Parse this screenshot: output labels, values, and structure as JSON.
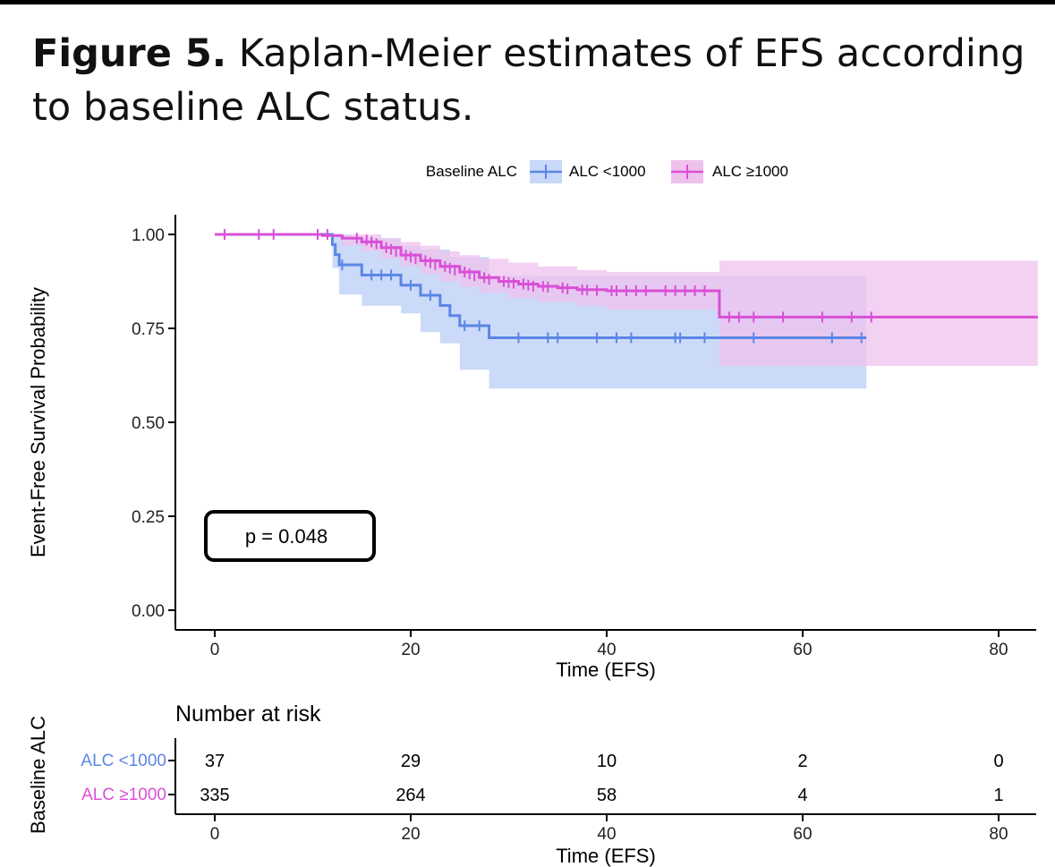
{
  "caption": {
    "label": "Figure 5.",
    "text": " Kaplan-Meier estimates of EFS according to baseline ALC status."
  },
  "colors": {
    "alc_low": "#5b86e5",
    "alc_low_band": "#c8d8f8",
    "alc_high": "#d94fd6",
    "alc_high_band": "#efc2ee",
    "axis": "#000000"
  },
  "chart_data": {
    "type": "line",
    "subtype": "kaplan-meier",
    "title": "",
    "xlabel": "Time (EFS)",
    "ylabel": "Event-Free Survival Probability",
    "xlim": [
      -5,
      84
    ],
    "ylim": [
      -0.02,
      1.05
    ],
    "xticks": [
      "0",
      "20",
      "40",
      "60",
      "80"
    ],
    "yticks": [
      "0.00",
      "0.25",
      "0.50",
      "0.75",
      "1.00"
    ],
    "legend": {
      "title": "Baseline ALC",
      "position": "top",
      "entries": [
        "ALC <1000",
        "ALC ≥1000"
      ]
    },
    "annotation": "p = 0.048",
    "series": [
      {
        "name": "ALC <1000",
        "color": "#5b86e5",
        "steps": [
          [
            0,
            1.0
          ],
          [
            12,
            0.973
          ],
          [
            12.3,
            0.946
          ],
          [
            12.7,
            0.919
          ],
          [
            15,
            0.892
          ],
          [
            19,
            0.865
          ],
          [
            21,
            0.838
          ],
          [
            23,
            0.811
          ],
          [
            24,
            0.784
          ],
          [
            25,
            0.757
          ],
          [
            28,
            0.725
          ],
          [
            66.5,
            0.725
          ]
        ],
        "ci_upper": [
          [
            0,
            1.0
          ],
          [
            12,
            1.0
          ],
          [
            14,
            0.99
          ],
          [
            19,
            0.97
          ],
          [
            21,
            0.96
          ],
          [
            24,
            0.94
          ],
          [
            28,
            0.89
          ],
          [
            66.5,
            0.89
          ]
        ],
        "ci_lower": [
          [
            0,
            1.0
          ],
          [
            12,
            0.91
          ],
          [
            12.7,
            0.84
          ],
          [
            15,
            0.81
          ],
          [
            19,
            0.79
          ],
          [
            21,
            0.74
          ],
          [
            23,
            0.71
          ],
          [
            25,
            0.64
          ],
          [
            28,
            0.59
          ],
          [
            66.5,
            0.59
          ]
        ],
        "censors": [
          [
            13,
            0.919
          ],
          [
            16,
            0.892
          ],
          [
            17,
            0.892
          ],
          [
            18,
            0.892
          ],
          [
            20,
            0.865
          ],
          [
            22,
            0.838
          ],
          [
            25.5,
            0.757
          ],
          [
            27,
            0.757
          ],
          [
            31,
            0.725
          ],
          [
            34,
            0.725
          ],
          [
            35,
            0.725
          ],
          [
            39,
            0.725
          ],
          [
            41,
            0.725
          ],
          [
            42.5,
            0.725
          ],
          [
            47,
            0.725
          ],
          [
            47.5,
            0.725
          ],
          [
            50,
            0.725
          ],
          [
            55,
            0.725
          ],
          [
            63,
            0.725
          ],
          [
            66,
            0.725
          ]
        ]
      },
      {
        "name": "ALC ≥1000",
        "color": "#d94fd6",
        "steps": [
          [
            0,
            1.0
          ],
          [
            11,
            0.997
          ],
          [
            13,
            0.99
          ],
          [
            15,
            0.98
          ],
          [
            17,
            0.965
          ],
          [
            19,
            0.945
          ],
          [
            21,
            0.93
          ],
          [
            23,
            0.915
          ],
          [
            25,
            0.9
          ],
          [
            27,
            0.885
          ],
          [
            29,
            0.875
          ],
          [
            31,
            0.868
          ],
          [
            33,
            0.862
          ],
          [
            35,
            0.858
          ],
          [
            37,
            0.853
          ],
          [
            40,
            0.85
          ],
          [
            51.5,
            0.85
          ],
          [
            51.5,
            0.78
          ],
          [
            84,
            0.78
          ]
        ],
        "ci_upper": [
          [
            0,
            1.0
          ],
          [
            15,
            1.0
          ],
          [
            17,
            0.99
          ],
          [
            19,
            0.98
          ],
          [
            21,
            0.97
          ],
          [
            23,
            0.955
          ],
          [
            25,
            0.945
          ],
          [
            27,
            0.935
          ],
          [
            30,
            0.925
          ],
          [
            33,
            0.915
          ],
          [
            37,
            0.905
          ],
          [
            40,
            0.9
          ],
          [
            51.5,
            0.9
          ],
          [
            51.5,
            0.93
          ],
          [
            84,
            0.93
          ]
        ],
        "ci_lower": [
          [
            0,
            1.0
          ],
          [
            13,
            0.97
          ],
          [
            15,
            0.955
          ],
          [
            17,
            0.935
          ],
          [
            19,
            0.915
          ],
          [
            21,
            0.895
          ],
          [
            23,
            0.875
          ],
          [
            25,
            0.86
          ],
          [
            27,
            0.845
          ],
          [
            30,
            0.83
          ],
          [
            33,
            0.82
          ],
          [
            37,
            0.81
          ],
          [
            40,
            0.8
          ],
          [
            51.5,
            0.8
          ],
          [
            51.5,
            0.65
          ],
          [
            84,
            0.65
          ]
        ],
        "censors": [
          [
            1,
            1.0
          ],
          [
            4.5,
            1.0
          ],
          [
            6,
            1.0
          ],
          [
            10.5,
            1.0
          ],
          [
            11.5,
            1.0
          ],
          [
            14.5,
            0.99
          ],
          [
            15.5,
            0.985
          ],
          [
            16,
            0.98
          ],
          [
            16.5,
            0.975
          ],
          [
            17.5,
            0.965
          ],
          [
            18,
            0.96
          ],
          [
            18.5,
            0.955
          ],
          [
            19.5,
            0.945
          ],
          [
            20,
            0.94
          ],
          [
            20.5,
            0.935
          ],
          [
            21.5,
            0.93
          ],
          [
            22,
            0.925
          ],
          [
            22.5,
            0.92
          ],
          [
            23.5,
            0.915
          ],
          [
            24,
            0.91
          ],
          [
            24.5,
            0.905
          ],
          [
            25.5,
            0.9
          ],
          [
            26,
            0.895
          ],
          [
            26.5,
            0.89
          ],
          [
            27.5,
            0.885
          ],
          [
            28,
            0.88
          ],
          [
            29.5,
            0.875
          ],
          [
            30,
            0.872
          ],
          [
            30.5,
            0.87
          ],
          [
            31.5,
            0.868
          ],
          [
            32,
            0.865
          ],
          [
            32.5,
            0.862
          ],
          [
            33.5,
            0.862
          ],
          [
            34,
            0.86
          ],
          [
            35.5,
            0.858
          ],
          [
            36,
            0.855
          ],
          [
            37.5,
            0.853
          ],
          [
            38,
            0.852
          ],
          [
            39,
            0.851
          ],
          [
            40.5,
            0.85
          ],
          [
            41,
            0.85
          ],
          [
            42,
            0.85
          ],
          [
            43,
            0.85
          ],
          [
            44,
            0.85
          ],
          [
            46,
            0.85
          ],
          [
            47,
            0.85
          ],
          [
            48,
            0.85
          ],
          [
            49,
            0.85
          ],
          [
            50,
            0.85
          ],
          [
            52.5,
            0.78
          ],
          [
            53.5,
            0.78
          ],
          [
            55,
            0.78
          ],
          [
            58,
            0.78
          ],
          [
            62,
            0.78
          ],
          [
            65,
            0.78
          ],
          [
            67,
            0.78
          ]
        ]
      }
    ],
    "risk_table": {
      "title": "Number at risk",
      "ylabel": "Baseline ALC",
      "xlabel": "Time (EFS)",
      "times": [
        0,
        20,
        40,
        60,
        80
      ],
      "xticks": [
        "0",
        "20",
        "40",
        "60",
        "80"
      ],
      "rows": [
        {
          "label": "ALC <1000",
          "counts": [
            "37",
            "29",
            "10",
            "2",
            "0"
          ]
        },
        {
          "label": "ALC ≥1000",
          "counts": [
            "335",
            "264",
            "58",
            "4",
            "1"
          ]
        }
      ]
    }
  }
}
